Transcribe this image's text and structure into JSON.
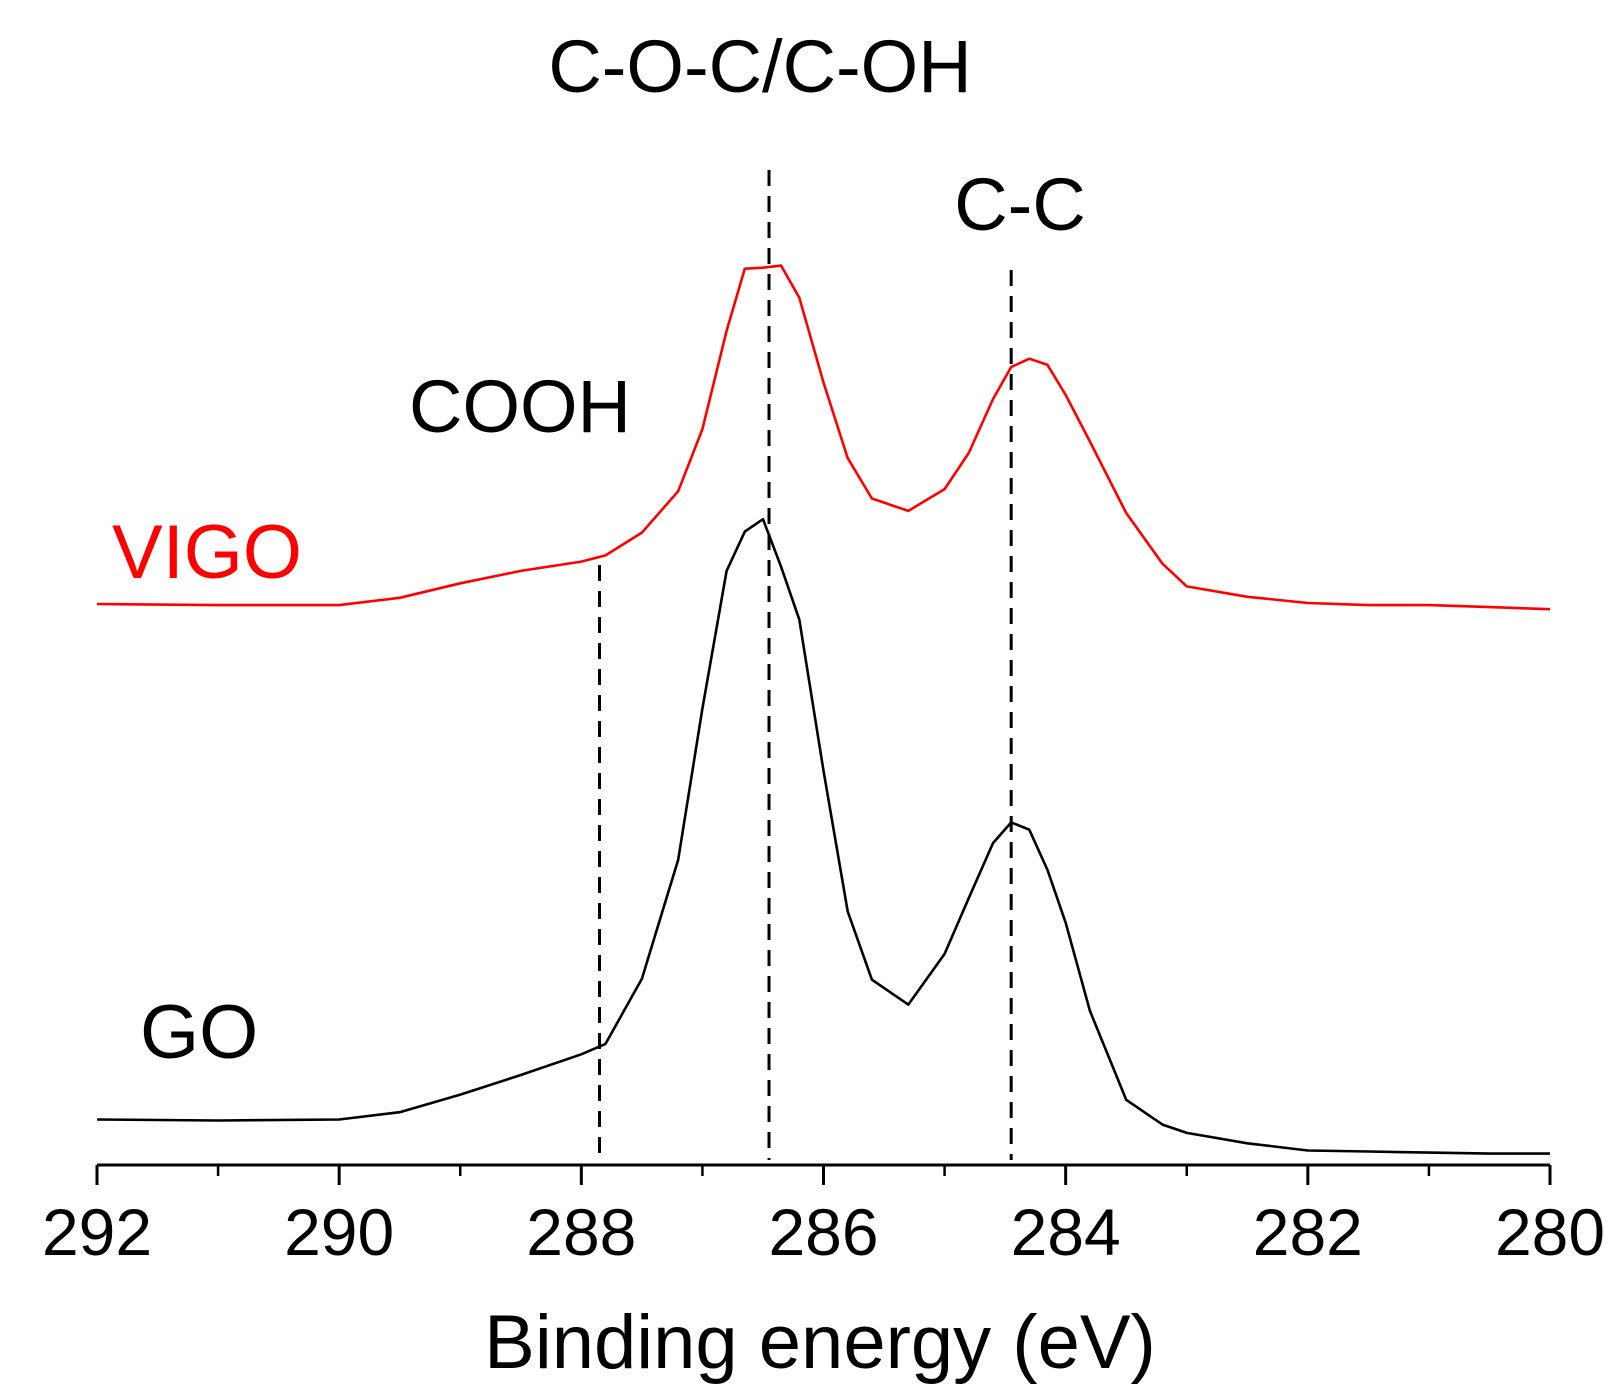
{
  "chart_data": {
    "type": "line",
    "title": "",
    "xlabel": "Binding energy (eV)",
    "ylabel": "",
    "xlim": [
      292,
      280
    ],
    "x_reversed": true,
    "ylim": [
      0,
      1
    ],
    "grid": false,
    "x_ticks": [
      {
        "value": 292,
        "label": "292"
      },
      {
        "value": 290,
        "label": "290"
      },
      {
        "value": 288,
        "label": "288"
      },
      {
        "value": 286,
        "label": "286"
      },
      {
        "value": 284,
        "label": "284"
      },
      {
        "value": 282,
        "label": "282"
      },
      {
        "value": 280,
        "label": "280"
      }
    ],
    "x_minor_step": 1,
    "series": [
      {
        "name": "VIGO",
        "color": "#ff0000",
        "x": [
          292.0,
          291.0,
          290.0,
          289.5,
          289.0,
          288.5,
          288.0,
          287.8,
          287.5,
          287.2,
          287.0,
          286.8,
          286.65,
          286.5,
          286.35,
          286.2,
          286.0,
          285.8,
          285.6,
          285.3,
          285.0,
          284.8,
          284.6,
          284.45,
          284.3,
          284.15,
          284.0,
          283.8,
          283.5,
          283.2,
          283.0,
          282.5,
          282.0,
          281.5,
          281.0,
          280.5,
          280.0
        ],
        "values": [
          0.542,
          0.541,
          0.541,
          0.548,
          0.562,
          0.574,
          0.583,
          0.589,
          0.611,
          0.651,
          0.711,
          0.806,
          0.866,
          0.867,
          0.869,
          0.838,
          0.756,
          0.683,
          0.644,
          0.632,
          0.653,
          0.688,
          0.74,
          0.771,
          0.779,
          0.773,
          0.744,
          0.699,
          0.63,
          0.581,
          0.559,
          0.549,
          0.543,
          0.541,
          0.541,
          0.539,
          0.537
        ]
      },
      {
        "name": "GO",
        "color": "#000000",
        "x": [
          292.0,
          291.0,
          290.0,
          289.5,
          289.0,
          288.5,
          288.0,
          287.8,
          287.5,
          287.2,
          287.0,
          286.8,
          286.65,
          286.5,
          286.35,
          286.2,
          286.0,
          285.8,
          285.6,
          285.3,
          285.0,
          284.8,
          284.6,
          284.45,
          284.3,
          284.15,
          284.0,
          283.8,
          283.5,
          283.2,
          283.0,
          282.5,
          282.0,
          281.5,
          281.0,
          280.5,
          280.0
        ],
        "values": [
          0.044,
          0.043,
          0.044,
          0.051,
          0.068,
          0.087,
          0.107,
          0.117,
          0.18,
          0.295,
          0.441,
          0.574,
          0.612,
          0.624,
          0.578,
          0.527,
          0.381,
          0.245,
          0.179,
          0.155,
          0.204,
          0.258,
          0.311,
          0.331,
          0.324,
          0.285,
          0.234,
          0.149,
          0.063,
          0.039,
          0.031,
          0.021,
          0.014,
          0.013,
          0.012,
          0.011,
          0.011
        ]
      }
    ],
    "reference_lines": [
      {
        "x": 287.85,
        "label": "COOH"
      },
      {
        "x": 286.45,
        "label": "C-O-C/C-OH"
      },
      {
        "x": 284.45,
        "label": "C-C"
      }
    ],
    "annotations": [
      {
        "text": "VIGO",
        "color": "#ff0000"
      },
      {
        "text": "GO",
        "color": "#000000"
      }
    ]
  }
}
